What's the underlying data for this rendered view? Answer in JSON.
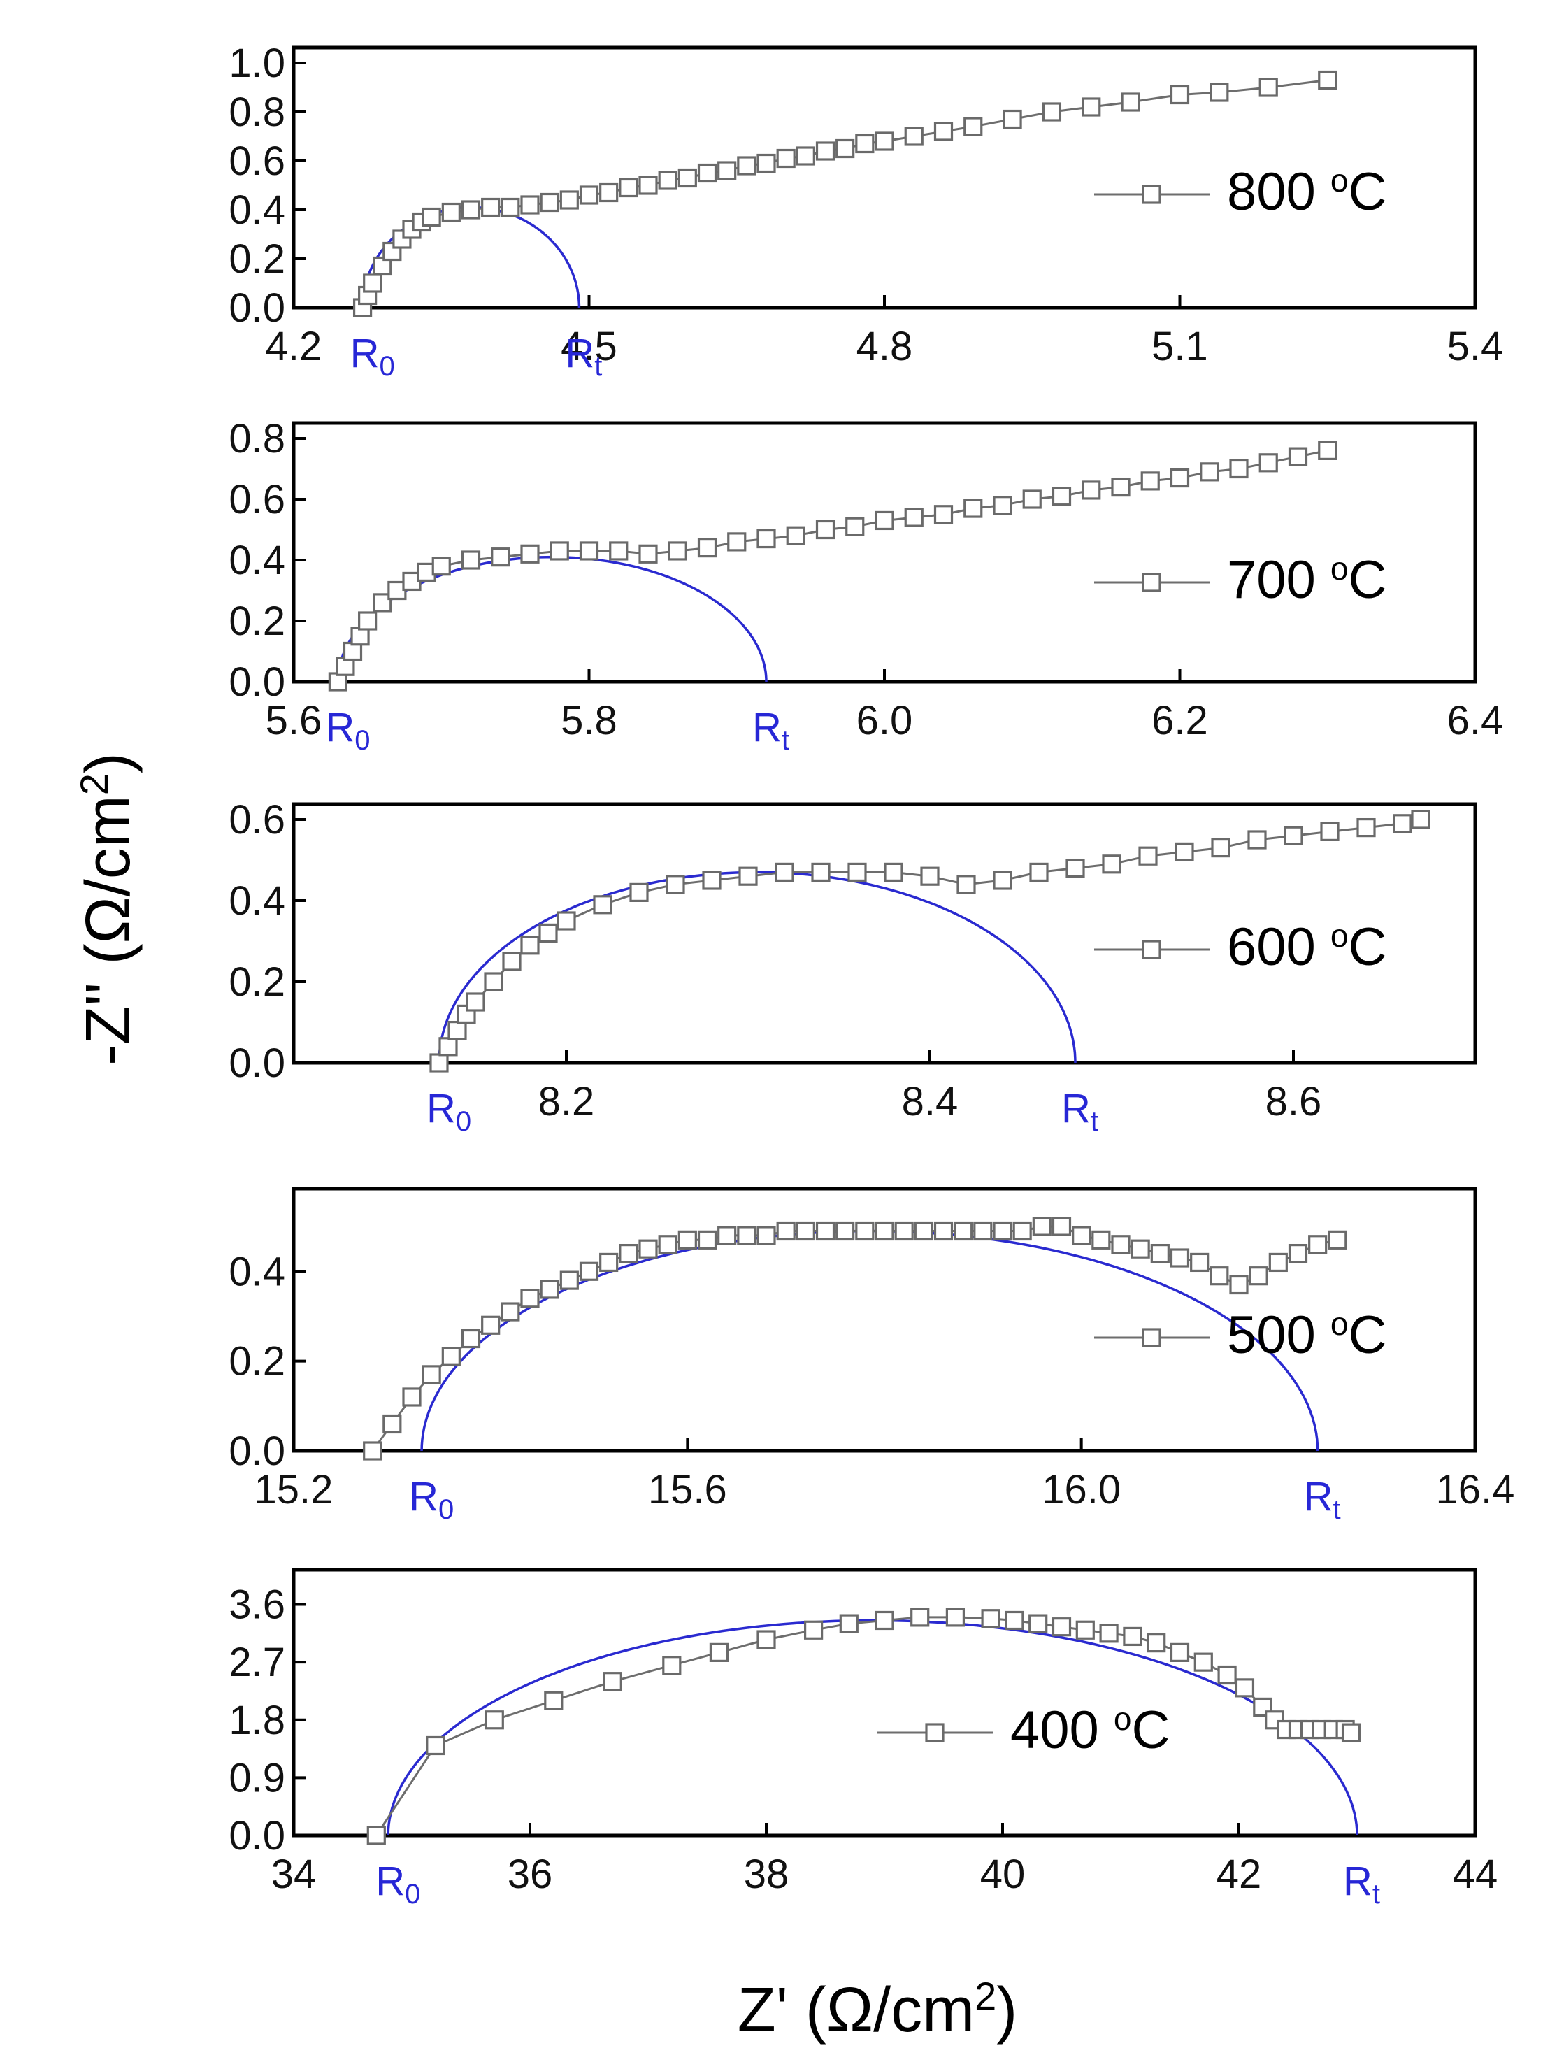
{
  "chart_data": [
    {
      "type": "scatter",
      "legend": "800 °C",
      "legend_main": "800 °",
      "legend_unit": "C",
      "legend_sup": "o",
      "xlim": [
        4.2,
        5.4
      ],
      "ylim": [
        0.0,
        1.0
      ],
      "xticks": [
        "4.2",
        "4.5",
        "4.8",
        "5.1",
        "5.4"
      ],
      "yticks": [
        "0.0",
        "0.2",
        "0.4",
        "0.6",
        "0.8",
        "1.0"
      ],
      "r0_label": "R",
      "r0_sub": "0",
      "rt_label": "R",
      "rt_sub": "t",
      "fit": {
        "R0": 4.27,
        "Rt": 4.49,
        "peak": 0.41
      },
      "series": [
        {
          "name": "800 °C",
          "x": [
            4.27,
            4.275,
            4.28,
            4.29,
            4.3,
            4.31,
            4.32,
            4.33,
            4.34,
            4.36,
            4.38,
            4.4,
            4.42,
            4.44,
            4.46,
            4.48,
            4.5,
            4.52,
            4.54,
            4.56,
            4.58,
            4.6,
            4.62,
            4.64,
            4.66,
            4.68,
            4.7,
            4.72,
            4.74,
            4.76,
            4.78,
            4.8,
            4.83,
            4.86,
            4.89,
            4.93,
            4.97,
            5.01,
            5.05,
            5.1,
            5.14,
            5.19,
            5.25
          ],
          "y": [
            0.0,
            0.05,
            0.1,
            0.17,
            0.23,
            0.28,
            0.32,
            0.35,
            0.37,
            0.39,
            0.4,
            0.41,
            0.41,
            0.42,
            0.43,
            0.44,
            0.46,
            0.47,
            0.49,
            0.5,
            0.52,
            0.53,
            0.55,
            0.56,
            0.58,
            0.59,
            0.61,
            0.62,
            0.64,
            0.65,
            0.67,
            0.68,
            0.7,
            0.72,
            0.74,
            0.77,
            0.8,
            0.82,
            0.84,
            0.87,
            0.88,
            0.9,
            0.93
          ]
        }
      ]
    },
    {
      "type": "scatter",
      "legend": "700 °C",
      "legend_main": "700 °",
      "legend_unit": "C",
      "legend_sup": "o",
      "xlim": [
        5.6,
        6.4
      ],
      "ylim": [
        0.0,
        0.8
      ],
      "xticks": [
        "5.6",
        "5.8",
        "6.0",
        "6.2",
        "6.4"
      ],
      "yticks": [
        "0.0",
        "0.2",
        "0.4",
        "0.6",
        "0.8"
      ],
      "r0_label": "R",
      "r0_sub": "0",
      "rt_label": "R",
      "rt_sub": "t",
      "fit": {
        "R0": 5.63,
        "Rt": 5.92,
        "peak": 0.41
      },
      "series": [
        {
          "name": "700 °C",
          "x": [
            5.63,
            5.635,
            5.64,
            5.645,
            5.65,
            5.66,
            5.67,
            5.68,
            5.69,
            5.7,
            5.72,
            5.74,
            5.76,
            5.78,
            5.8,
            5.82,
            5.84,
            5.86,
            5.88,
            5.9,
            5.92,
            5.94,
            5.96,
            5.98,
            6.0,
            6.02,
            6.04,
            6.06,
            6.08,
            6.1,
            6.12,
            6.14,
            6.16,
            6.18,
            6.2,
            6.22,
            6.24,
            6.26,
            6.28,
            6.3
          ],
          "y": [
            0.0,
            0.05,
            0.1,
            0.15,
            0.2,
            0.26,
            0.3,
            0.33,
            0.36,
            0.38,
            0.4,
            0.41,
            0.42,
            0.43,
            0.43,
            0.43,
            0.42,
            0.43,
            0.44,
            0.46,
            0.47,
            0.48,
            0.5,
            0.51,
            0.53,
            0.54,
            0.55,
            0.57,
            0.58,
            0.6,
            0.61,
            0.63,
            0.64,
            0.66,
            0.67,
            0.69,
            0.7,
            0.72,
            0.74,
            0.76
          ]
        }
      ]
    },
    {
      "type": "scatter",
      "legend": "600 °C",
      "legend_main": "600 °",
      "legend_unit": "C",
      "legend_sup": "o",
      "xlim": [
        8.05,
        8.7
      ],
      "ylim": [
        0.0,
        0.6
      ],
      "xticks": [
        "8.2",
        "8.4",
        "8.6"
      ],
      "yticks": [
        "0.0",
        "0.2",
        "0.4",
        "0.6"
      ],
      "r0_label": "R",
      "r0_sub": "0",
      "rt_label": "R",
      "rt_sub": "t",
      "fit": {
        "R0": 8.13,
        "Rt": 8.48,
        "peak": 0.47
      },
      "series": [
        {
          "name": "600 °C",
          "x": [
            8.13,
            8.135,
            8.14,
            8.145,
            8.15,
            8.16,
            8.17,
            8.18,
            8.19,
            8.2,
            8.22,
            8.24,
            8.26,
            8.28,
            8.3,
            8.32,
            8.34,
            8.36,
            8.38,
            8.4,
            8.42,
            8.44,
            8.46,
            8.48,
            8.5,
            8.52,
            8.54,
            8.56,
            8.58,
            8.6,
            8.62,
            8.64,
            8.66,
            8.67
          ],
          "y": [
            0.0,
            0.04,
            0.08,
            0.12,
            0.15,
            0.2,
            0.25,
            0.29,
            0.32,
            0.35,
            0.39,
            0.42,
            0.44,
            0.45,
            0.46,
            0.47,
            0.47,
            0.47,
            0.47,
            0.46,
            0.44,
            0.45,
            0.47,
            0.48,
            0.49,
            0.51,
            0.52,
            0.53,
            0.55,
            0.56,
            0.57,
            0.58,
            0.59,
            0.6
          ]
        }
      ]
    },
    {
      "type": "scatter",
      "legend": "500 °C",
      "legend_main": "500 °",
      "legend_unit": "C",
      "legend_sup": "o",
      "xlim": [
        15.2,
        16.4
      ],
      "ylim": [
        0.0,
        0.55
      ],
      "xticks": [
        "15.2",
        "15.6",
        "16.0",
        "16.4"
      ],
      "yticks": [
        "0.0",
        "0.2",
        "0.4"
      ],
      "r0_label": "R",
      "r0_sub": "0",
      "rt_label": "R",
      "rt_sub": "t",
      "fit": {
        "R0": 15.33,
        "Rt": 16.24,
        "peak": 0.49
      },
      "series": [
        {
          "name": "500 °C",
          "x": [
            15.28,
            15.3,
            15.32,
            15.34,
            15.36,
            15.38,
            15.4,
            15.42,
            15.44,
            15.46,
            15.48,
            15.5,
            15.52,
            15.54,
            15.56,
            15.58,
            15.6,
            15.62,
            15.64,
            15.66,
            15.68,
            15.7,
            15.72,
            15.74,
            15.76,
            15.78,
            15.8,
            15.82,
            15.84,
            15.86,
            15.88,
            15.9,
            15.92,
            15.94,
            15.96,
            15.98,
            16.0,
            16.02,
            16.04,
            16.06,
            16.08,
            16.1,
            16.12,
            16.14,
            16.16,
            16.18,
            16.2,
            16.22,
            16.24,
            16.26
          ],
          "y": [
            0.0,
            0.06,
            0.12,
            0.17,
            0.21,
            0.25,
            0.28,
            0.31,
            0.34,
            0.36,
            0.38,
            0.4,
            0.42,
            0.44,
            0.45,
            0.46,
            0.47,
            0.47,
            0.48,
            0.48,
            0.48,
            0.49,
            0.49,
            0.49,
            0.49,
            0.49,
            0.49,
            0.49,
            0.49,
            0.49,
            0.49,
            0.49,
            0.49,
            0.49,
            0.5,
            0.5,
            0.48,
            0.47,
            0.46,
            0.45,
            0.44,
            0.43,
            0.42,
            0.39,
            0.37,
            0.39,
            0.42,
            0.44,
            0.46,
            0.47
          ]
        }
      ]
    },
    {
      "type": "scatter",
      "legend": "400 °C",
      "legend_main": "400 °",
      "legend_unit": "C",
      "legend_sup": "o",
      "xlim": [
        34,
        44
      ],
      "ylim": [
        0.0,
        3.9
      ],
      "xticks": [
        "34",
        "36",
        "38",
        "40",
        "42",
        "44"
      ],
      "yticks": [
        "0.0",
        "0.9",
        "1.8",
        "2.7",
        "3.6"
      ],
      "r0_label": "R",
      "r0_sub": "0",
      "rt_label": "R",
      "rt_sub": "t",
      "fit": {
        "R0": 34.8,
        "Rt": 43.0,
        "peak": 3.35
      },
      "series": [
        {
          "name": "400 °C",
          "x": [
            34.7,
            35.2,
            35.7,
            36.2,
            36.7,
            37.2,
            37.6,
            38.0,
            38.4,
            38.7,
            39.0,
            39.3,
            39.6,
            39.9,
            40.1,
            40.3,
            40.5,
            40.7,
            40.9,
            41.1,
            41.3,
            41.5,
            41.7,
            41.9,
            42.05,
            42.2,
            42.3,
            42.4,
            42.5,
            42.6,
            42.7,
            42.8,
            42.9,
            42.95
          ],
          "y": [
            0.0,
            1.4,
            1.8,
            2.1,
            2.4,
            2.65,
            2.85,
            3.05,
            3.2,
            3.3,
            3.35,
            3.4,
            3.4,
            3.38,
            3.35,
            3.3,
            3.25,
            3.2,
            3.15,
            3.1,
            3.0,
            2.85,
            2.7,
            2.5,
            2.3,
            2.0,
            1.8,
            1.65,
            1.65,
            1.65,
            1.65,
            1.65,
            1.65,
            1.6
          ]
        }
      ]
    }
  ],
  "ylabel": {
    "prefix": "-Z'' (Ω/cm",
    "sup": "2",
    "suffix": ")"
  },
  "xlabel": {
    "prefix": "Z' (Ω/cm",
    "sup": "2",
    "suffix": ")"
  }
}
